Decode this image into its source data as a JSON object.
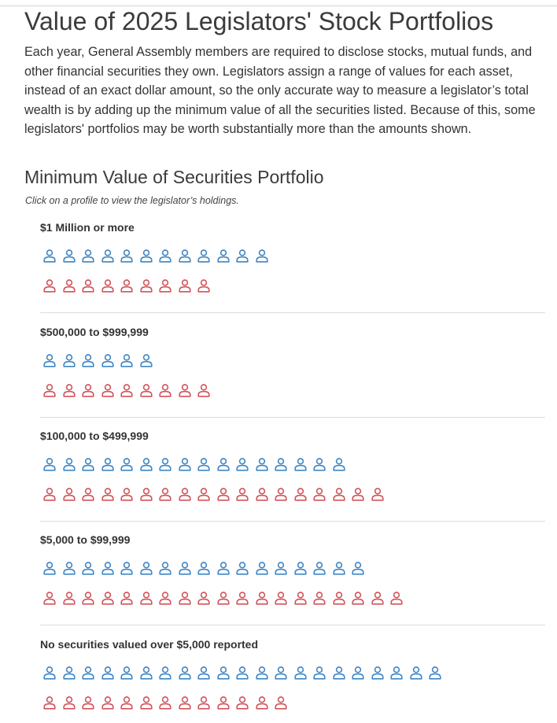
{
  "title": "Value of 2025 Legislators' Stock Portfolios",
  "intro": "Each year, General Assembly members are required to disclose stocks, mutual funds, and other financial securities they own. Legislators assign a range of values for each asset, instead of an exact dollar amount, so the only accurate way to measure a legislator’s total wealth is by adding up the minimum value of all the securities listed. Because of this, some legislators' portfolios may be worth substantially more than the amounts shown.",
  "section_title": "Minimum Value of Securities Portfolio",
  "subtitle": "Click on a profile to view the legislator’s holdings.",
  "colors": {
    "blue": "#3f86c4",
    "red": "#d2545a"
  },
  "icon": "person-icon",
  "groups": [
    {
      "label": "$1 Million or more",
      "blue_count": 12,
      "red_count": 9
    },
    {
      "label": "$500,000 to $999,999",
      "blue_count": 6,
      "red_count": 9
    },
    {
      "label": "$100,000 to $499,999",
      "blue_count": 16,
      "red_count": 18
    },
    {
      "label": "$5,000 to $99,999",
      "blue_count": 17,
      "red_count": 19
    },
    {
      "label": "No securities valued over $5,000 reported",
      "blue_count": 21,
      "red_count": 13
    }
  ]
}
